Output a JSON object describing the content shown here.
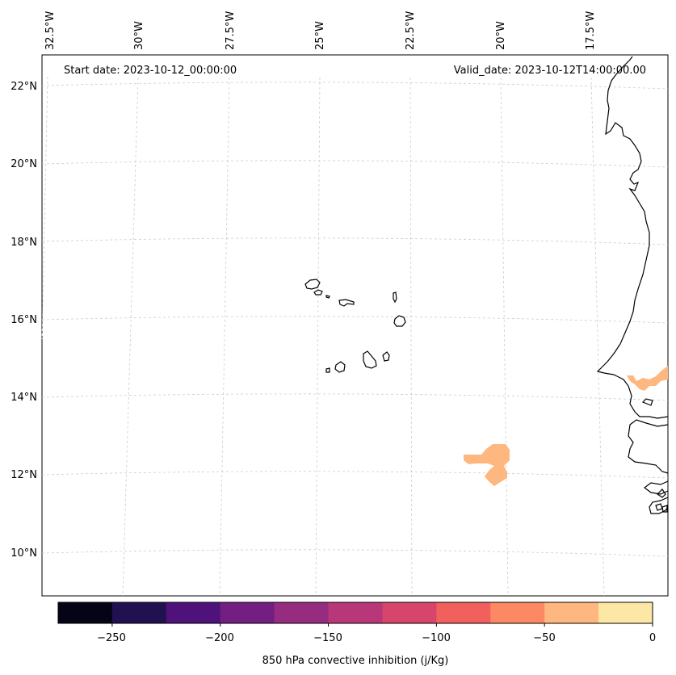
{
  "annotations": {
    "start_date": "Start date: 2023-10-12_00:00:00",
    "valid_date": "Valid_date: 2023-10-12T14:00:00.00"
  },
  "longitude_labels": [
    "32.5°W",
    "30°W",
    "27.5°W",
    "25°W",
    "22.5°W",
    "20°W",
    "17.5°W"
  ],
  "latitude_labels": [
    "22°N",
    "20°N",
    "18°N",
    "16°N",
    "14°N",
    "12°N",
    "10°N"
  ],
  "colorbar": {
    "label": "850 hPa convective inhibition (j/Kg)",
    "ticks": [
      "−250",
      "−200",
      "−150",
      "−100",
      "−50",
      "0"
    ],
    "levels": [
      -275,
      -250,
      -225,
      -200,
      -175,
      -150,
      -125,
      -100,
      -75,
      -50,
      -25,
      0
    ],
    "colors": [
      "#050416",
      "#221150",
      "#4f127b",
      "#721f81",
      "#952c80",
      "#b73779",
      "#d8456c",
      "#f1605d",
      "#fc8961",
      "#feb77e",
      "#fde7a5"
    ]
  },
  "field": {
    "name": "850 hPa convective inhibition",
    "units": "j/Kg",
    "shaded_regions": [
      {
        "class_range": [
          -50,
          -25
        ],
        "color": "#feb77e",
        "area": "near 12°N, 20.5°W"
      },
      {
        "class_range": [
          -50,
          -25
        ],
        "color": "#feb77e",
        "area": "near 14.5°N, 16.5°W (Senegal coast)"
      }
    ]
  }
}
